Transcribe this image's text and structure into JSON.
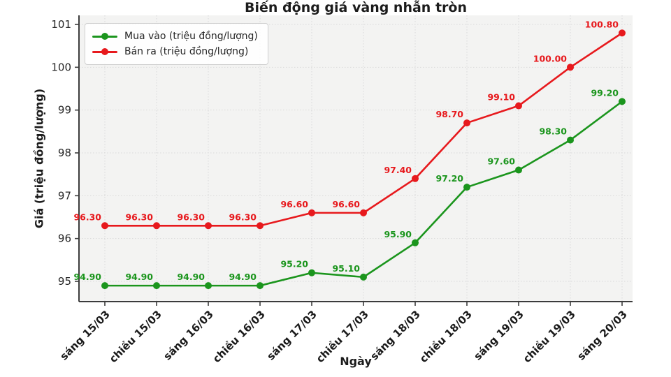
{
  "chart_data": {
    "type": "line",
    "title": "Biến động giá vàng nhẫn tròn",
    "xlabel": "Ngày",
    "ylabel": "Giá (triệu đồng/lượng)",
    "categories": [
      "sáng 15/03",
      "chiều 15/03",
      "sáng 16/03",
      "chiều 16/03",
      "sáng 17/03",
      "chiều 17/03",
      "sáng 18/03",
      "chiều 18/03",
      "sáng 19/03",
      "chiều 19/03",
      "sáng 20/03"
    ],
    "series": [
      {
        "name": "Mua vào (triệu đồng/lượng)",
        "color": "#1b951d",
        "values": [
          94.9,
          94.9,
          94.9,
          94.9,
          95.2,
          95.1,
          95.9,
          97.2,
          97.6,
          98.3,
          99.2
        ]
      },
      {
        "name": "Bán ra (triệu đồng/lượng)",
        "color": "#e7191d",
        "values": [
          96.3,
          96.3,
          96.3,
          96.3,
          96.6,
          96.6,
          97.4,
          98.7,
          99.1,
          100.0,
          100.8
        ]
      }
    ],
    "yticks": [
      95,
      96,
      97,
      98,
      99,
      100,
      101
    ],
    "ylim": [
      94.5,
      101.25
    ],
    "grid": true,
    "grid_style": "dotted",
    "legend_position": "upper left",
    "point_labels": true,
    "point_label_decimals": 2,
    "plot_bg_color": "#f3f3f2",
    "spine_color": "#3c3c3c",
    "tick_label_color": "#262626"
  }
}
